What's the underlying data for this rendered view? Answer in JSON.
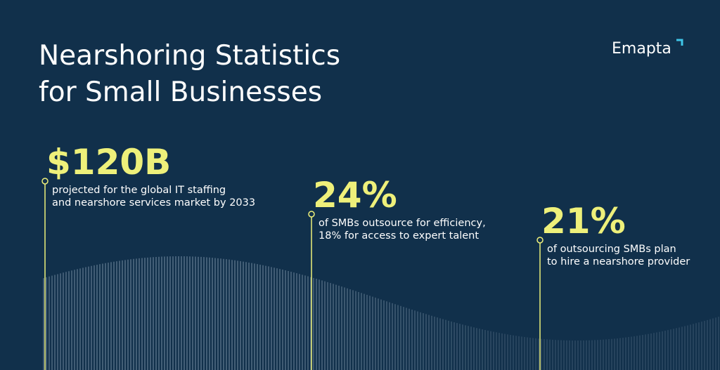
{
  "header": {
    "title_lines": [
      "Nearshoring Statistics",
      "for Small Businesses"
    ],
    "brand": "Emapta"
  },
  "stats": [
    {
      "value": "$120B",
      "description": [
        "projected for the global IT staffing",
        "and nearshore services market by 2033"
      ]
    },
    {
      "value": "24%",
      "description": [
        "of SMBs outsource for efficiency,",
        "18% for access to expert talent"
      ]
    },
    {
      "value": "21%",
      "description": [
        "of outsourcing SMBs plan",
        "to hire a nearshore provider"
      ]
    }
  ]
}
